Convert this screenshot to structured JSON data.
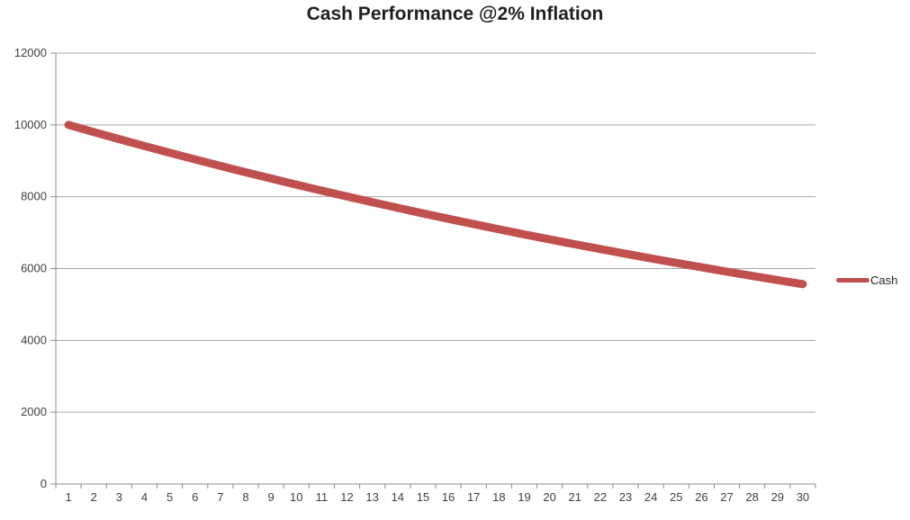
{
  "title": "Cash Performance @2% Inflation",
  "legend": {
    "label": "Cash"
  },
  "colors": {
    "series_line": "#C0504D",
    "gridline": "#A6A6A6",
    "axis_line": "#8C8C8C",
    "tick_label": "#404040",
    "title_text": "#1f1f1f",
    "background": "#FFFFFF"
  },
  "chart_data": {
    "type": "line",
    "title": "Cash Performance @2% Inflation",
    "x": [
      1,
      2,
      3,
      4,
      5,
      6,
      7,
      8,
      9,
      10,
      11,
      12,
      13,
      14,
      15,
      16,
      17,
      18,
      19,
      20,
      21,
      22,
      23,
      24,
      25,
      26,
      27,
      28,
      29,
      30
    ],
    "series": [
      {
        "name": "Cash",
        "color": "#C0504D",
        "values": [
          10000,
          9800,
          9604,
          9412,
          9224,
          9039,
          8858,
          8681,
          8508,
          8337,
          8171,
          8007,
          7847,
          7690,
          7536,
          7386,
          7238,
          7093,
          6951,
          6812,
          6676,
          6543,
          6412,
          6283,
          6158,
          6035,
          5914,
          5796,
          5680,
          5566
        ]
      }
    ],
    "xlabel": "",
    "ylabel": "",
    "ylim": [
      0,
      12000
    ],
    "yticks": [
      0,
      2000,
      4000,
      6000,
      8000,
      10000,
      12000
    ],
    "grid": "horizontal-major",
    "legend_position": "right",
    "line_width": 9
  }
}
